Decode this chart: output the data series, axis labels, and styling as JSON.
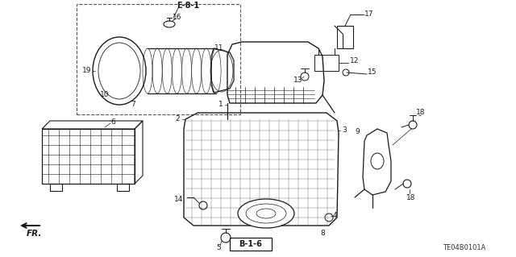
{
  "bg_color": "#ffffff",
  "line_color": "#1a1a1a",
  "part_number_label": "TE04B0101A",
  "figsize": [
    6.4,
    3.19
  ],
  "dpi": 100,
  "labels": {
    "E81": "E-8-1",
    "B16": "B-1-6",
    "FR": "FR.",
    "pn": "TE04B0101A"
  }
}
